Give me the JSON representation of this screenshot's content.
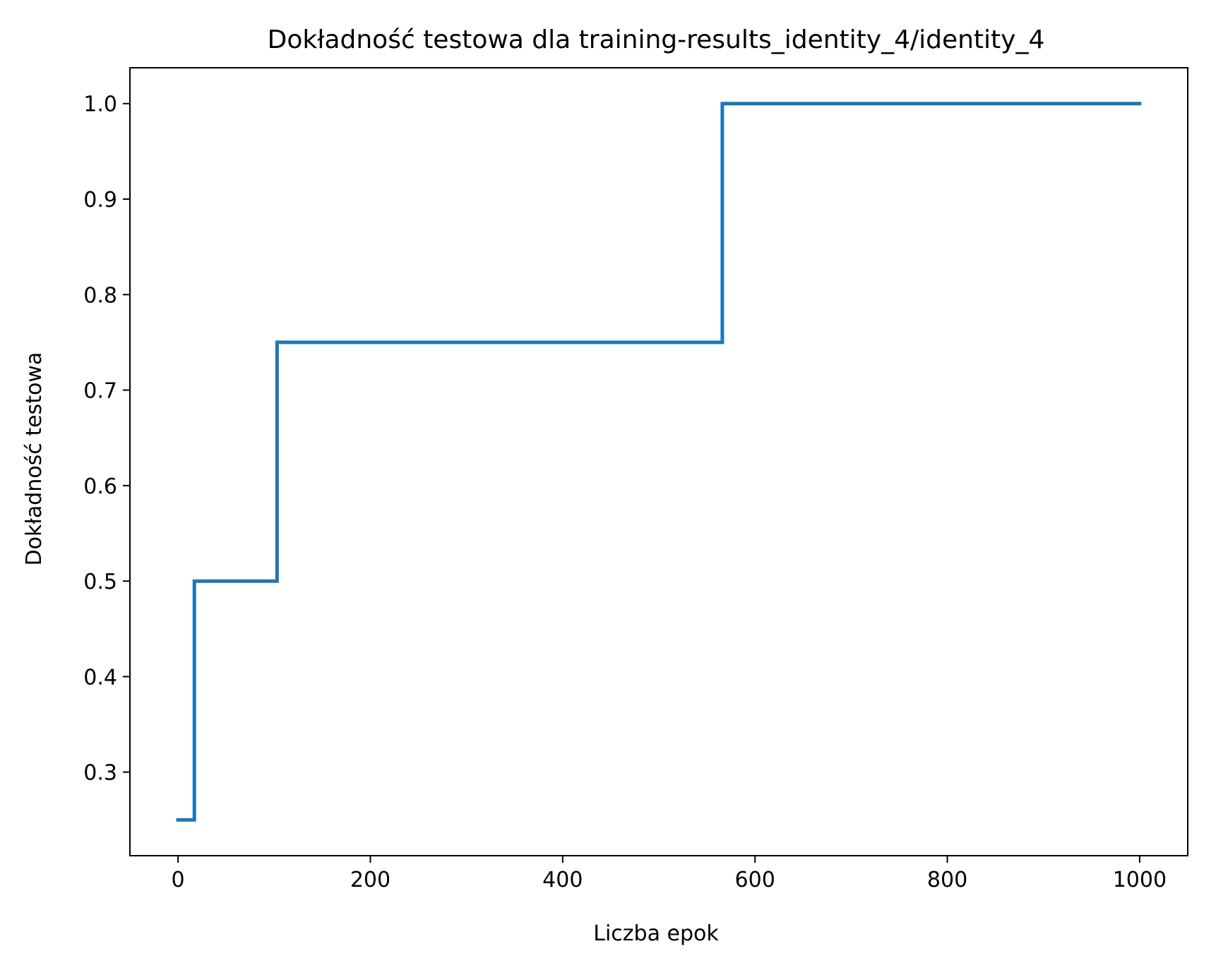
{
  "chart_data": {
    "type": "line",
    "title": "Dokładność testowa dla training-results_identity_4/identity_4",
    "xlabel": "Liczba epok",
    "ylabel": "Dokładność testowa",
    "xlim": [
      -50,
      1050
    ],
    "ylim": [
      0.2125,
      1.0375
    ],
    "xticks": [
      0,
      200,
      400,
      600,
      800,
      1000
    ],
    "xtick_labels": [
      "0",
      "200",
      "400",
      "600",
      "800",
      "1000"
    ],
    "yticks": [
      0.3,
      0.4,
      0.5,
      0.6,
      0.7,
      0.8,
      0.9,
      1.0
    ],
    "ytick_labels": [
      "0.3",
      "0.4",
      "0.5",
      "0.6",
      "0.7",
      "0.8",
      "0.9",
      "1.0"
    ],
    "grid": false,
    "legend": "none",
    "series": [
      {
        "color": "#1f77b4",
        "step": "post",
        "points": [
          {
            "x": 0,
            "y": 0.25
          },
          {
            "x": 17,
            "y": 0.5
          },
          {
            "x": 103,
            "y": 0.75
          },
          {
            "x": 566,
            "y": 1.0
          },
          {
            "x": 1000,
            "y": 1.0
          }
        ]
      }
    ]
  }
}
